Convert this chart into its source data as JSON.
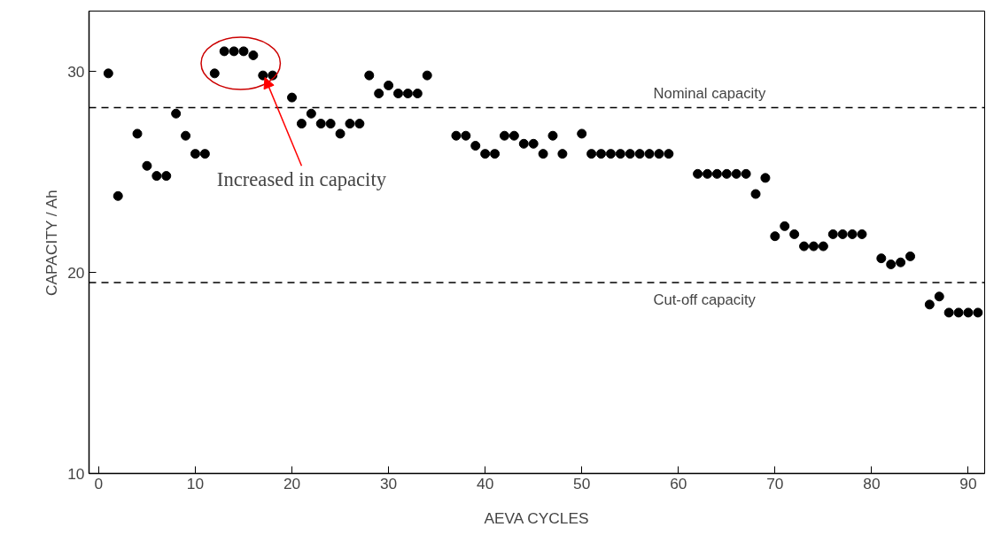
{
  "chart_data": {
    "type": "scatter",
    "xlabel": "AEVA CYCLES",
    "ylabel": "CAPACITY / Ah",
    "x": [
      1,
      2,
      4,
      5,
      6,
      7,
      8,
      9,
      10,
      11,
      12,
      13,
      14,
      15,
      16,
      17,
      18,
      20,
      21,
      22,
      23,
      24,
      25,
      26,
      27,
      28,
      29,
      30,
      31,
      32,
      33,
      34,
      37,
      38,
      39,
      40,
      41,
      42,
      43,
      44,
      45,
      46,
      47,
      48,
      50,
      51,
      52,
      53,
      54,
      55,
      56,
      57,
      58,
      59,
      62,
      63,
      64,
      65,
      66,
      67,
      68,
      69,
      70,
      71,
      72,
      73,
      74,
      75,
      76,
      77,
      78,
      79,
      81,
      82,
      83,
      84,
      86,
      87,
      88,
      89,
      90,
      91
    ],
    "series": [
      {
        "color": "#000000",
        "values": [
          29.9,
          23.8,
          26.9,
          25.3,
          24.8,
          24.8,
          27.9,
          26.8,
          25.9,
          25.9,
          29.9,
          31.0,
          31.0,
          31.0,
          30.8,
          29.8,
          29.8,
          28.7,
          27.4,
          27.9,
          27.4,
          27.4,
          26.9,
          27.4,
          27.4,
          29.8,
          28.9,
          29.3,
          28.9,
          28.9,
          28.9,
          29.8,
          26.8,
          26.8,
          26.3,
          25.9,
          25.9,
          26.8,
          26.8,
          26.4,
          26.4,
          25.9,
          26.8,
          25.9,
          26.9,
          25.9,
          25.9,
          25.9,
          25.9,
          25.9,
          25.9,
          25.9,
          25.9,
          25.9,
          24.9,
          24.9,
          24.9,
          24.9,
          24.9,
          24.9,
          23.9,
          24.7,
          21.8,
          22.3,
          21.9,
          21.3,
          21.3,
          21.3,
          21.9,
          21.9,
          21.9,
          21.9,
          20.7,
          20.4,
          20.5,
          20.8,
          18.4,
          18.8,
          18.0,
          18.0,
          18.0,
          18.0
        ]
      }
    ],
    "marker": "circle",
    "xlim": [
      -1,
      91.7
    ],
    "ylim": [
      10,
      33
    ],
    "xticks": [
      0,
      10,
      20,
      30,
      40,
      50,
      60,
      70,
      80,
      90
    ],
    "yticks": [
      10,
      20,
      30
    ],
    "grid": false,
    "ref_lines": [
      {
        "axis": "y",
        "value": 28.2,
        "label": "Nominal capacity",
        "line_style": "dashed",
        "color": "#000000"
      },
      {
        "axis": "y",
        "value": 19.5,
        "label": "Cut-off capacity",
        "line_style": "dashed",
        "color": "#000000"
      }
    ],
    "annotations": [
      {
        "text": "Increased in capacity",
        "x": 17,
        "y": 29.8
      }
    ]
  }
}
